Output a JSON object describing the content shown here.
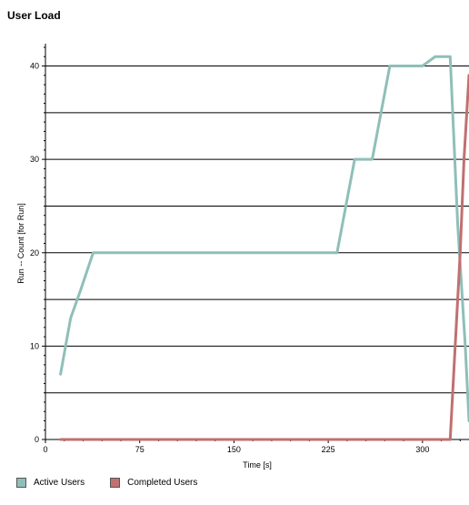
{
  "page_title": "User Load",
  "chart_data": {
    "type": "line",
    "xlabel": "Time [s]",
    "ylabel": "Run -- Count [for Run]",
    "xlim": [
      0,
      337
    ],
    "ylim": [
      0,
      42
    ],
    "xticks": [
      0,
      75,
      150,
      225,
      300
    ],
    "yticks": [
      0,
      10,
      20,
      30,
      40
    ],
    "minor_ytick_step": 5,
    "grid": true,
    "legend_position": "bottom-left",
    "series": [
      {
        "name": "Active Users",
        "color": "#8fbfb8",
        "x": [
          12,
          20,
          28,
          38,
          232,
          246,
          260,
          274,
          300,
          310,
          322,
          328,
          334,
          337
        ],
        "y": [
          7,
          13,
          16,
          20,
          20,
          30,
          30,
          40,
          40,
          41,
          41,
          23,
          10,
          2
        ]
      },
      {
        "name": "Completed Users",
        "color": "#c07070",
        "x": [
          12,
          322,
          326,
          330,
          333,
          337
        ],
        "y": [
          0,
          0,
          10,
          20,
          30,
          39
        ]
      }
    ]
  }
}
